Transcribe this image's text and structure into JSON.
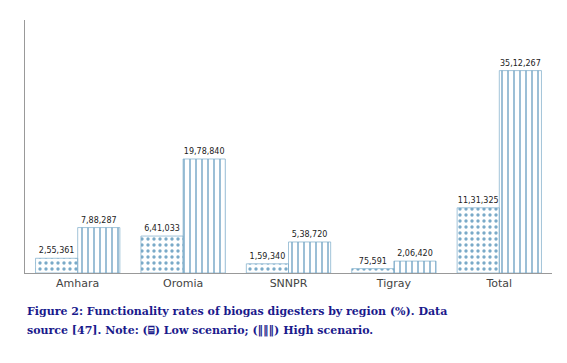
{
  "chart_data": {
    "type": "bar",
    "categories": [
      "Amhara",
      "Oromia",
      "SNNPR",
      "Tigray",
      "Total"
    ],
    "series": [
      {
        "color": "#a8c8e8",
        "values": [
          255361,
          641033,
          159340,
          75591,
          1131325
        ],
        "value_labels": [
          "2,55,361",
          "6,41,033",
          "1,59,340",
          "75,591",
          "11,31,325"
        ]
      },
      {
        "color": "#c8dff5",
        "values": [
          788287,
          1978840,
          538720,
          206420,
          3512267
        ],
        "value_labels": [
          "7,88,287",
          "19,78,840",
          "5,38,720",
          "2,06,420",
          "35,12,267"
        ]
      }
    ],
    "ylim": [
      0,
      4390333.75
    ],
    "yticks": [],
    "tick_labels": "x",
    "grid": false,
    "data_labels": true,
    "annotations": [
      "Figure 2: Functionality rates of biogas digesters by region (%). Data",
      "source [47]. Note: (⌸) Low scenario; (‖‖‖) High scenario."
    ]
  }
}
